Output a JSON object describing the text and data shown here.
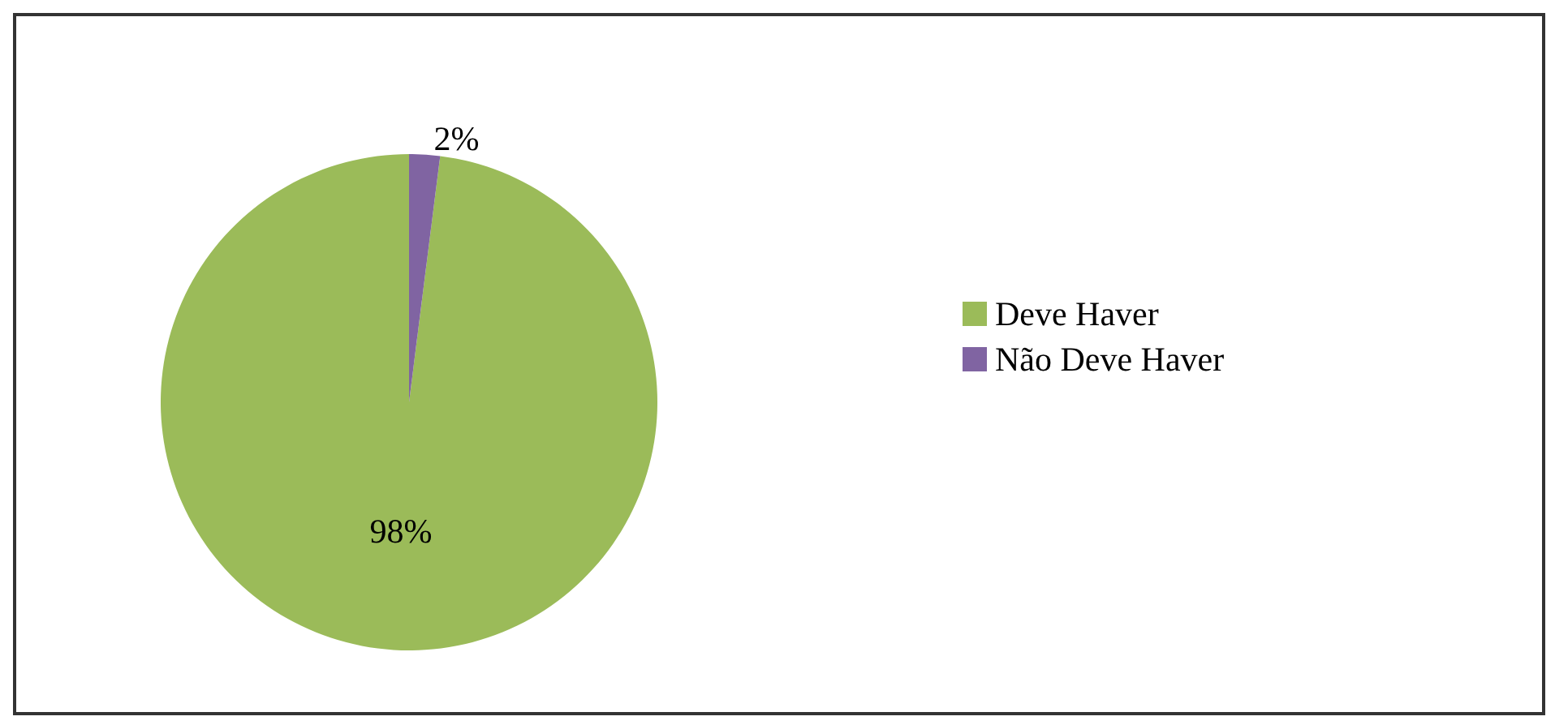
{
  "chart_data": {
    "type": "pie",
    "categories": [
      "Deve Haver",
      "Não Deve Haver"
    ],
    "values": [
      98,
      2
    ],
    "value_labels": [
      "98%",
      "2%"
    ],
    "colors": [
      "#9bbb59",
      "#8064a2"
    ],
    "legend": "right"
  }
}
